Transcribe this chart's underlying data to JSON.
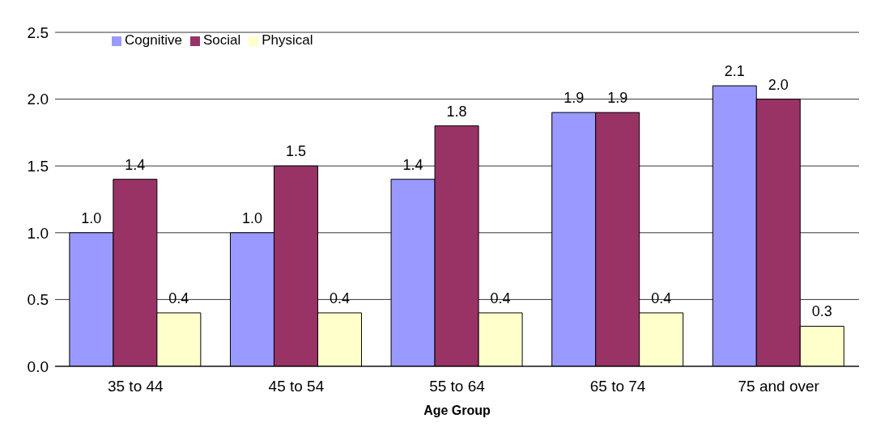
{
  "chart_data": {
    "type": "bar",
    "xlabel": "Age Group",
    "categories": [
      "35 to 44",
      "45 to 54",
      "55 to 64",
      "65 to 74",
      "75 and over"
    ],
    "series": [
      {
        "name": "Cognitive",
        "color": "#9999ff",
        "values": [
          1.0,
          1.0,
          1.4,
          1.9,
          2.1
        ],
        "value_labels": [
          "1.0",
          "1.0",
          "1.4",
          "1.9",
          "2.1"
        ]
      },
      {
        "name": "Social",
        "color": "#993366",
        "values": [
          1.4,
          1.5,
          1.8,
          1.9,
          2.0
        ],
        "value_labels": [
          "1.4",
          "1.5",
          "1.8",
          "1.9",
          "2.0"
        ]
      },
      {
        "name": "Physical",
        "color": "#ffffcc",
        "values": [
          0.4,
          0.4,
          0.4,
          0.4,
          0.3
        ],
        "value_labels": [
          "0.4",
          "0.4",
          "0.4",
          "0.4",
          "0.3"
        ]
      }
    ],
    "ylim": [
      0,
      2.5
    ],
    "yticks": [
      {
        "value": 0,
        "label": "0.0"
      },
      {
        "value": 0.5,
        "label": "0.5"
      },
      {
        "value": 1,
        "label": "1.0"
      },
      {
        "value": 1.5,
        "label": "1.5"
      },
      {
        "value": 2,
        "label": "2.0"
      },
      {
        "value": 2.5,
        "label": "2.5"
      }
    ],
    "grid": "y",
    "legend": "top left"
  }
}
